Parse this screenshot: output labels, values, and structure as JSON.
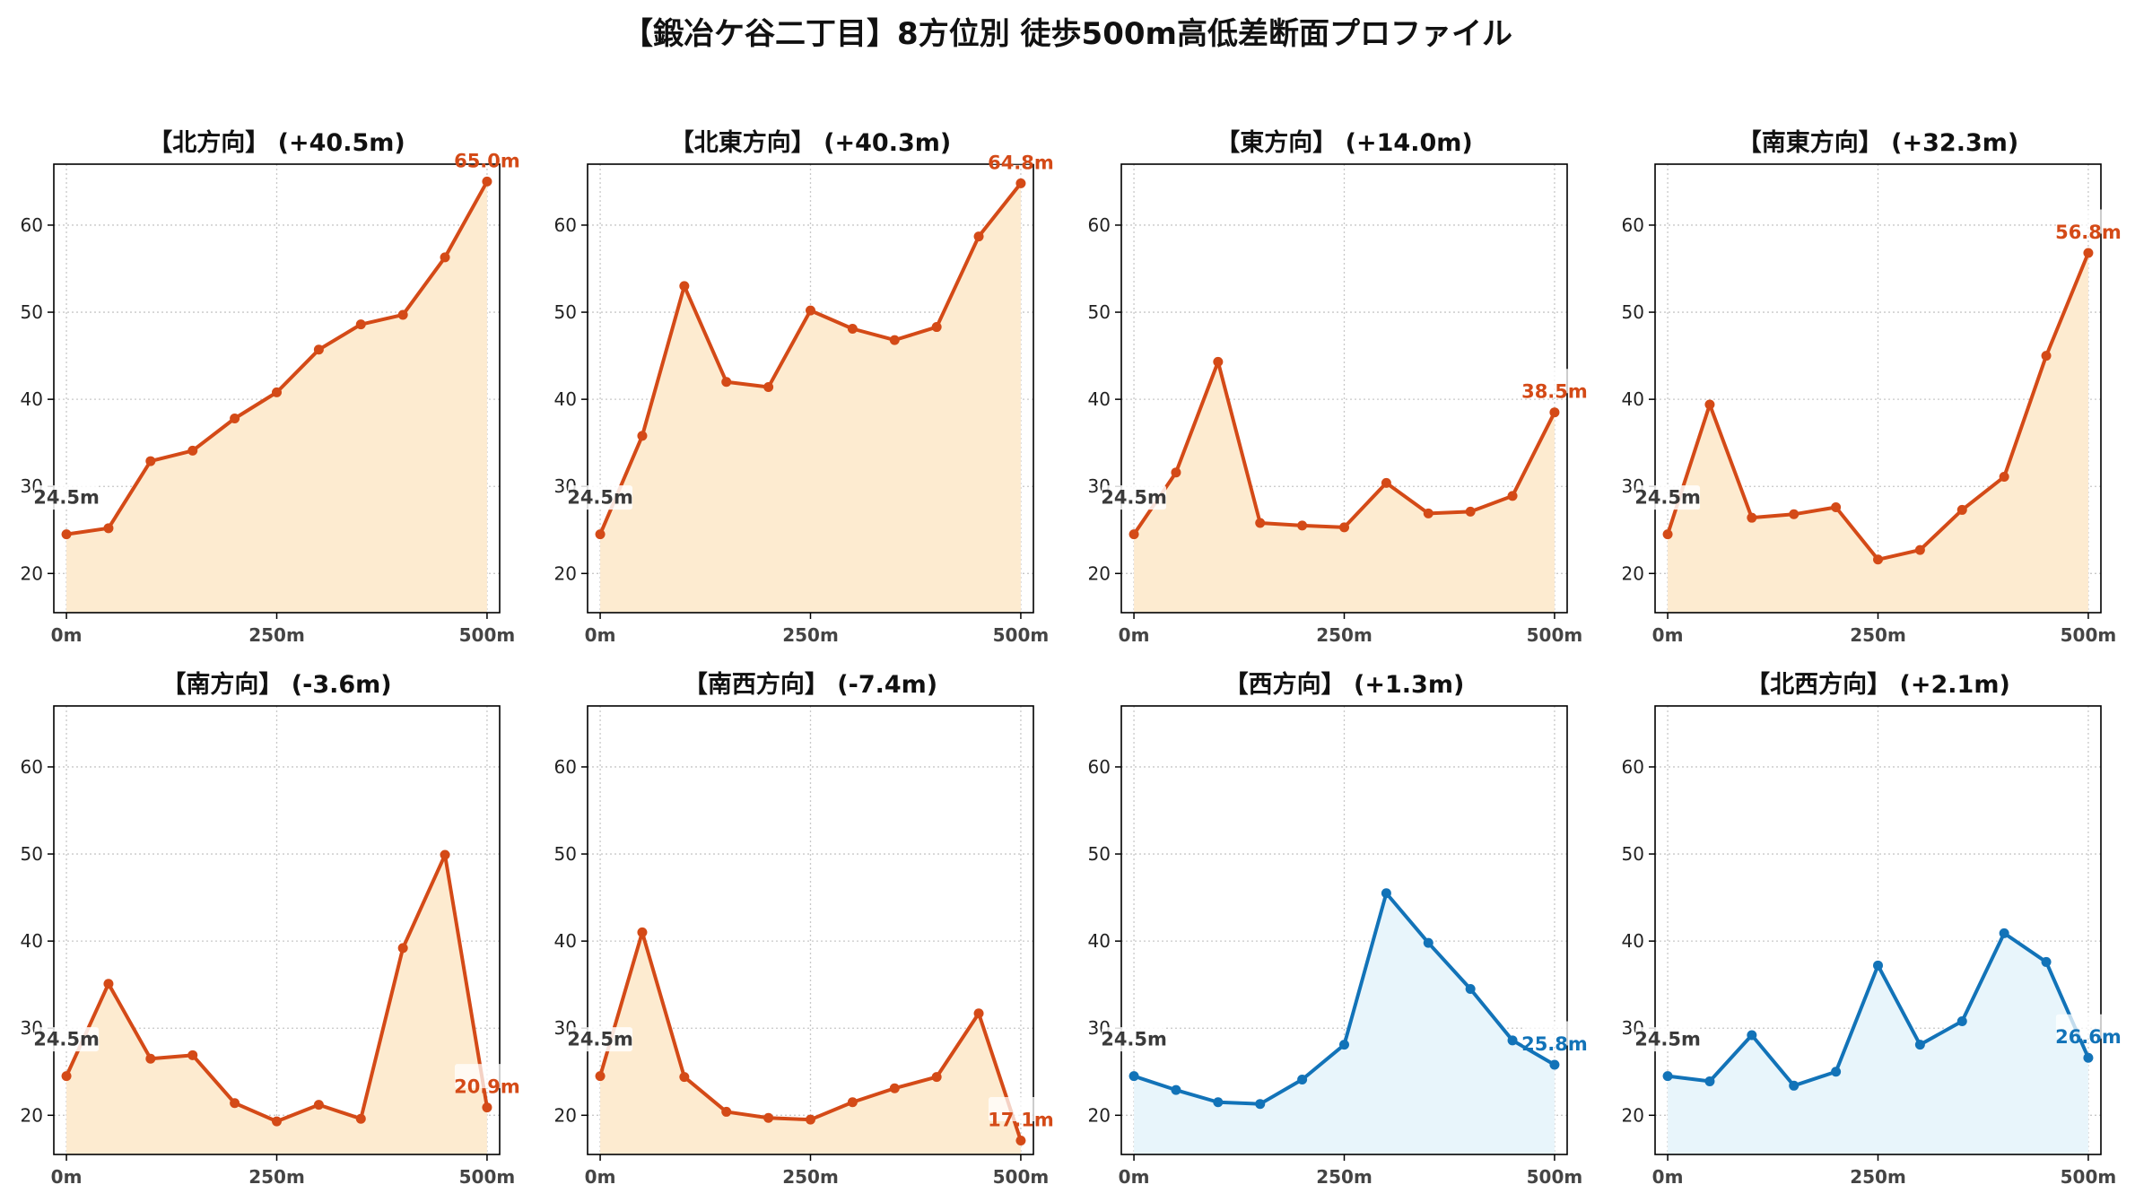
{
  "title": "【鍛冶ケ谷二丁目】8方位別 徒歩500m高低差断面プロファイル",
  "colors": {
    "uphill_line": "#d44a17",
    "uphill_fill": "#fdebd0",
    "flat_line": "#1273b8",
    "flat_fill": "#e8f5fb",
    "start_label": "#3a3a3a"
  },
  "chart_data": [
    {
      "type": "area",
      "title": "【北方向】 (+40.5m)",
      "x": [
        0,
        50,
        100,
        150,
        200,
        250,
        300,
        350,
        400,
        450,
        500
      ],
      "values": [
        24.5,
        25.2,
        32.9,
        34.1,
        37.8,
        40.8,
        45.7,
        48.6,
        49.7,
        56.3,
        65.0
      ],
      "start_label": "24.5m",
      "end_label": "65.0m",
      "color_scheme": "uphill",
      "xticks": [
        0,
        250,
        500
      ],
      "xtick_labels": [
        "0m",
        "250m",
        "500m"
      ],
      "yticks": [
        20,
        30,
        40,
        50,
        60
      ],
      "ytick_labels": [
        "20",
        "30",
        "40",
        "50",
        "60"
      ],
      "xlim": [
        -15,
        515
      ],
      "ylim": [
        15.5,
        67
      ],
      "grid": true
    },
    {
      "type": "area",
      "title": "【北東方向】 (+40.3m)",
      "x": [
        0,
        50,
        100,
        150,
        200,
        250,
        300,
        350,
        400,
        450,
        500
      ],
      "values": [
        24.5,
        35.8,
        53.0,
        42.0,
        41.4,
        50.2,
        48.1,
        46.8,
        48.3,
        58.7,
        64.8
      ],
      "start_label": "24.5m",
      "end_label": "64.8m",
      "color_scheme": "uphill",
      "xticks": [
        0,
        250,
        500
      ],
      "xtick_labels": [
        "0m",
        "250m",
        "500m"
      ],
      "yticks": [
        20,
        30,
        40,
        50,
        60
      ],
      "ytick_labels": [
        "20",
        "30",
        "40",
        "50",
        "60"
      ],
      "xlim": [
        -15,
        515
      ],
      "ylim": [
        15.5,
        67
      ],
      "grid": true
    },
    {
      "type": "area",
      "title": "【東方向】 (+14.0m)",
      "x": [
        0,
        50,
        100,
        150,
        200,
        250,
        300,
        350,
        400,
        450,
        500
      ],
      "values": [
        24.5,
        31.6,
        44.3,
        25.8,
        25.5,
        25.3,
        30.4,
        26.9,
        27.1,
        28.9,
        38.5
      ],
      "start_label": "24.5m",
      "end_label": "38.5m",
      "color_scheme": "uphill",
      "xticks": [
        0,
        250,
        500
      ],
      "xtick_labels": [
        "0m",
        "250m",
        "500m"
      ],
      "yticks": [
        20,
        30,
        40,
        50,
        60
      ],
      "ytick_labels": [
        "20",
        "30",
        "40",
        "50",
        "60"
      ],
      "xlim": [
        -15,
        515
      ],
      "ylim": [
        15.5,
        67
      ],
      "grid": true
    },
    {
      "type": "area",
      "title": "【南東方向】 (+32.3m)",
      "x": [
        0,
        50,
        100,
        150,
        200,
        250,
        300,
        350,
        400,
        450,
        500
      ],
      "values": [
        24.5,
        39.4,
        26.4,
        26.8,
        27.6,
        21.6,
        22.7,
        27.3,
        31.1,
        45.0,
        56.8
      ],
      "start_label": "24.5m",
      "end_label": "56.8m",
      "color_scheme": "uphill",
      "xticks": [
        0,
        250,
        500
      ],
      "xtick_labels": [
        "0m",
        "250m",
        "500m"
      ],
      "yticks": [
        20,
        30,
        40,
        50,
        60
      ],
      "ytick_labels": [
        "20",
        "30",
        "40",
        "50",
        "60"
      ],
      "xlim": [
        -15,
        515
      ],
      "ylim": [
        15.5,
        67
      ],
      "grid": true
    },
    {
      "type": "area",
      "title": "【南方向】 (-3.6m)",
      "x": [
        0,
        50,
        100,
        150,
        200,
        250,
        300,
        350,
        400,
        450,
        500
      ],
      "values": [
        24.5,
        35.1,
        26.5,
        26.9,
        21.4,
        19.3,
        21.2,
        19.6,
        39.2,
        49.9,
        20.9
      ],
      "start_label": "24.5m",
      "end_label": "20.9m",
      "color_scheme": "uphill",
      "xticks": [
        0,
        250,
        500
      ],
      "xtick_labels": [
        "0m",
        "250m",
        "500m"
      ],
      "yticks": [
        20,
        30,
        40,
        50,
        60
      ],
      "ytick_labels": [
        "20",
        "30",
        "40",
        "50",
        "60"
      ],
      "xlim": [
        -15,
        515
      ],
      "ylim": [
        15.5,
        67
      ],
      "grid": true
    },
    {
      "type": "area",
      "title": "【南西方向】 (-7.4m)",
      "x": [
        0,
        50,
        100,
        150,
        200,
        250,
        300,
        350,
        400,
        450,
        500
      ],
      "values": [
        24.5,
        41.0,
        24.4,
        20.4,
        19.7,
        19.5,
        21.5,
        23.1,
        24.4,
        31.7,
        17.1
      ],
      "start_label": "24.5m",
      "end_label": "17.1m",
      "color_scheme": "uphill",
      "xticks": [
        0,
        250,
        500
      ],
      "xtick_labels": [
        "0m",
        "250m",
        "500m"
      ],
      "yticks": [
        20,
        30,
        40,
        50,
        60
      ],
      "ytick_labels": [
        "20",
        "30",
        "40",
        "50",
        "60"
      ],
      "xlim": [
        -15,
        515
      ],
      "ylim": [
        15.5,
        67
      ],
      "grid": true
    },
    {
      "type": "area",
      "title": "【西方向】 (+1.3m)",
      "x": [
        0,
        50,
        100,
        150,
        200,
        250,
        300,
        350,
        400,
        450,
        500
      ],
      "values": [
        24.5,
        22.9,
        21.5,
        21.3,
        24.1,
        28.1,
        45.5,
        39.8,
        34.5,
        28.6,
        25.8
      ],
      "start_label": "24.5m",
      "end_label": "25.8m",
      "color_scheme": "flat",
      "xticks": [
        0,
        250,
        500
      ],
      "xtick_labels": [
        "0m",
        "250m",
        "500m"
      ],
      "yticks": [
        20,
        30,
        40,
        50,
        60
      ],
      "ytick_labels": [
        "20",
        "30",
        "40",
        "50",
        "60"
      ],
      "xlim": [
        -15,
        515
      ],
      "ylim": [
        15.5,
        67
      ],
      "grid": true
    },
    {
      "type": "area",
      "title": "【北西方向】 (+2.1m)",
      "x": [
        0,
        50,
        100,
        150,
        200,
        250,
        300,
        350,
        400,
        450,
        500
      ],
      "values": [
        24.5,
        23.9,
        29.2,
        23.4,
        25.0,
        37.2,
        28.1,
        30.8,
        40.9,
        37.6,
        26.6
      ],
      "start_label": "24.5m",
      "end_label": "26.6m",
      "color_scheme": "flat",
      "xticks": [
        0,
        250,
        500
      ],
      "xtick_labels": [
        "0m",
        "250m",
        "500m"
      ],
      "yticks": [
        20,
        30,
        40,
        50,
        60
      ],
      "ytick_labels": [
        "20",
        "30",
        "40",
        "50",
        "60"
      ],
      "xlim": [
        -15,
        515
      ],
      "ylim": [
        15.5,
        67
      ],
      "grid": true
    }
  ]
}
